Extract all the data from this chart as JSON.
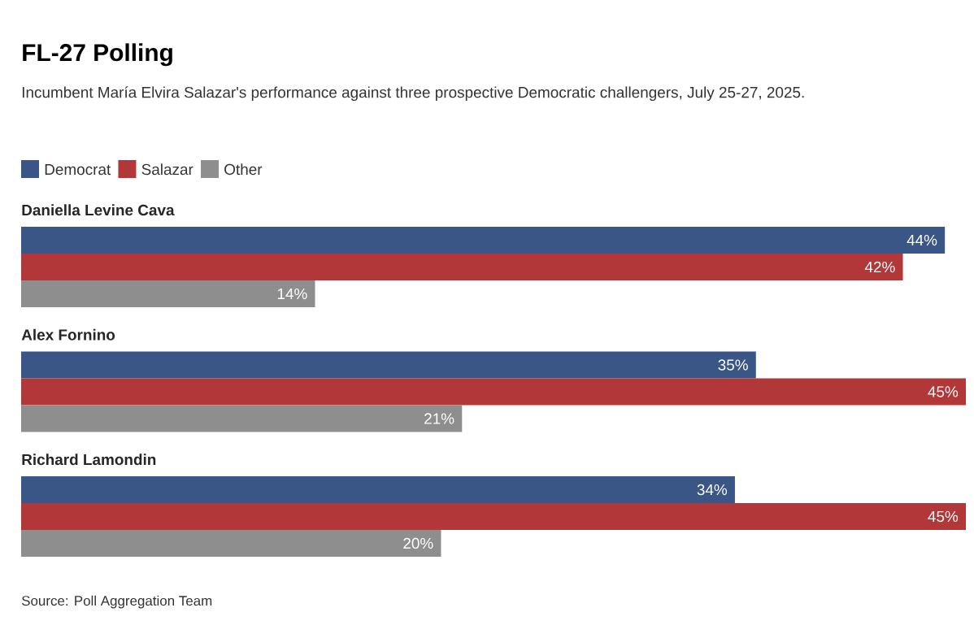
{
  "chart_data": {
    "type": "bar",
    "orientation": "horizontal",
    "title": "FL-27 Polling",
    "subtitle": "Incumbent María Elvira Salazar's performance against three prospective Democratic challengers, July 25-27, 2025.",
    "categories": [
      "Daniella Levine Cava",
      "Alex Fornino",
      "Richard Lamondin"
    ],
    "series": [
      {
        "name": "Democrat",
        "color": "#3a5686",
        "values": [
          44,
          35,
          34
        ],
        "value_labels": [
          "44%",
          "35%",
          "34%"
        ]
      },
      {
        "name": "Salazar",
        "color": "#b23739",
        "values": [
          42,
          45,
          45
        ],
        "value_labels": [
          "42%",
          "45%",
          "45%"
        ]
      },
      {
        "name": "Other",
        "color": "#8e8e8e",
        "values": [
          14,
          21,
          20
        ],
        "value_labels": [
          "14%",
          "21%",
          "20%"
        ]
      }
    ],
    "xlim": [
      0,
      45
    ],
    "tick_labels": false,
    "legend": "top left",
    "annotations": [
      "Source: Poll Aggregation Team"
    ]
  }
}
